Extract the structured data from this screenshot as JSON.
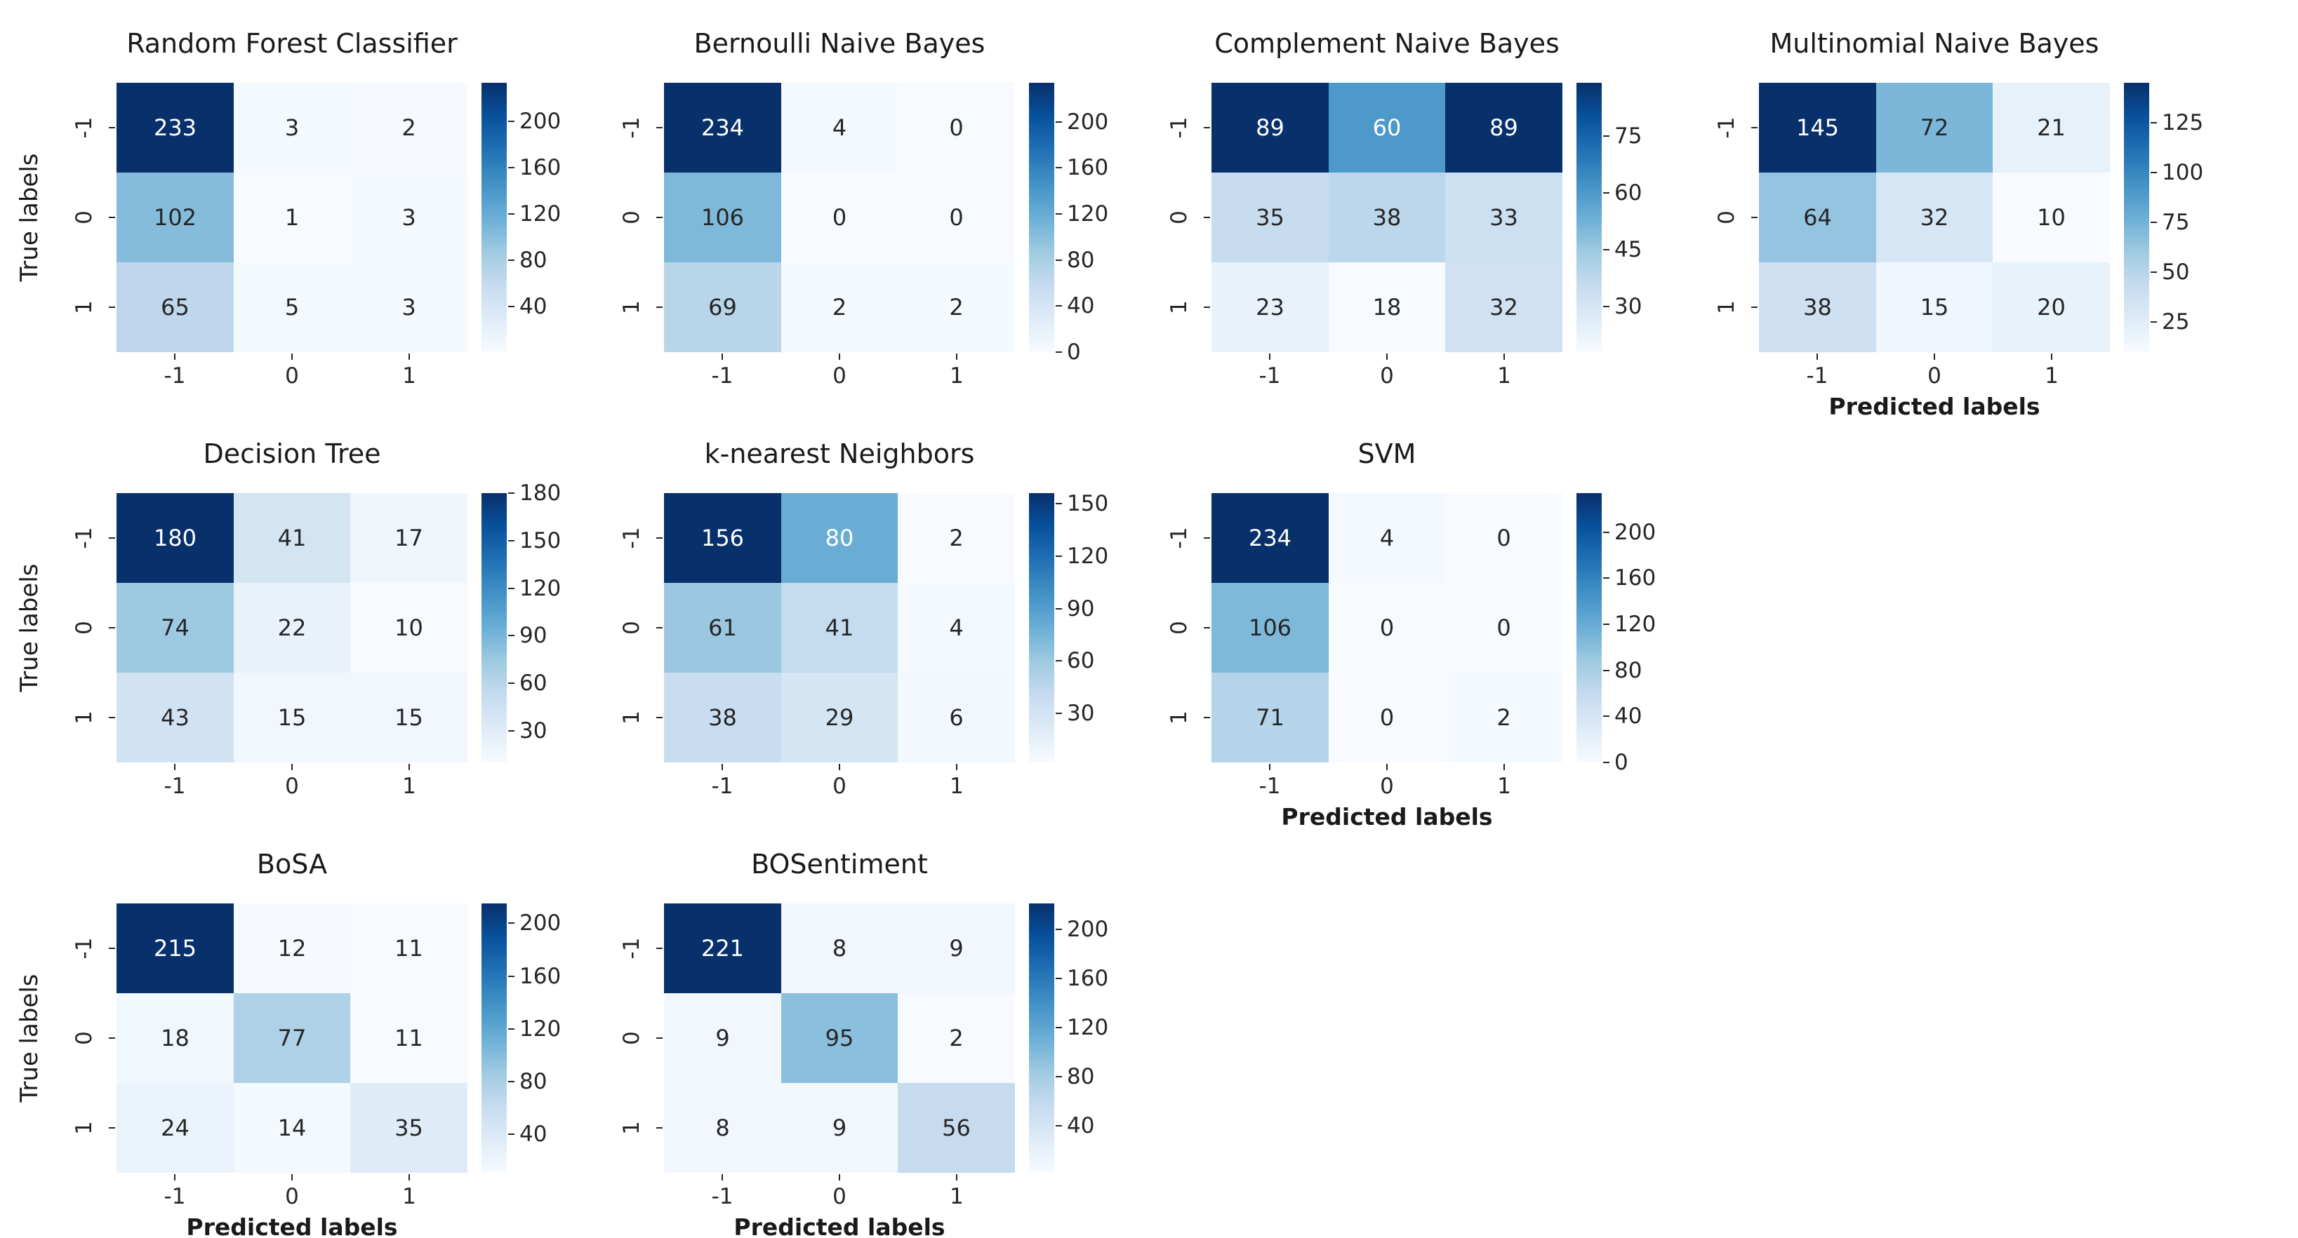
{
  "figure": {
    "background": "#ffffff",
    "y_axis_label": "True labels",
    "x_axis_label": "Predicted labels",
    "text_color": "#262626",
    "annotation_dark_color": "#262626",
    "annotation_light_color": "#ffffff",
    "colormap": {
      "name": "Blues",
      "stops": [
        "#f7fbff",
        "#deebf7",
        "#c6dbef",
        "#9ecae1",
        "#6baed6",
        "#4292c6",
        "#2171b5",
        "#08519c",
        "#08306b"
      ]
    }
  },
  "chart_data": {
    "type": "heatmap",
    "description": "Grid of 3x3 confusion matrices for nine sentiment classifiers, Blues colormap, each with its own colorbar",
    "x_categories": [
      "-1",
      "0",
      "1"
    ],
    "y_categories": [
      "-1",
      "0",
      "1"
    ],
    "charts": [
      {
        "title": "Random Forest Classifier",
        "row": 0,
        "col": 0,
        "matrix": [
          [
            233,
            3,
            2
          ],
          [
            102,
            1,
            3
          ],
          [
            65,
            5,
            3
          ]
        ],
        "vmin": 1,
        "vmax": 233,
        "colorbar_ticks": [
          200,
          160,
          120,
          80,
          40
        ],
        "show_y_axis_label": true,
        "show_x_axis_label": false
      },
      {
        "title": "Bernoulli Naive Bayes",
        "row": 0,
        "col": 1,
        "matrix": [
          [
            234,
            4,
            0
          ],
          [
            106,
            0,
            0
          ],
          [
            69,
            2,
            2
          ]
        ],
        "vmin": 0,
        "vmax": 234,
        "colorbar_ticks": [
          200,
          160,
          120,
          80,
          40,
          0
        ],
        "show_y_axis_label": false,
        "show_x_axis_label": false
      },
      {
        "title": "Complement Naive Bayes",
        "row": 0,
        "col": 2,
        "matrix": [
          [
            89,
            60,
            89
          ],
          [
            35,
            38,
            33
          ],
          [
            23,
            18,
            32
          ]
        ],
        "vmin": 18,
        "vmax": 89,
        "colorbar_ticks": [
          75,
          60,
          45,
          30
        ],
        "show_y_axis_label": false,
        "show_x_axis_label": false
      },
      {
        "title": "Multinomial Naive Bayes",
        "row": 0,
        "col": 3,
        "matrix": [
          [
            145,
            72,
            21
          ],
          [
            64,
            32,
            10
          ],
          [
            38,
            15,
            20
          ]
        ],
        "vmin": 10,
        "vmax": 145,
        "colorbar_ticks": [
          125,
          100,
          75,
          50,
          25
        ],
        "show_y_axis_label": false,
        "show_x_axis_label": true
      },
      {
        "title": "Decision Tree",
        "row": 1,
        "col": 0,
        "matrix": [
          [
            180,
            41,
            17
          ],
          [
            74,
            22,
            10
          ],
          [
            43,
            15,
            15
          ]
        ],
        "vmin": 10,
        "vmax": 180,
        "colorbar_ticks": [
          180,
          150,
          120,
          90,
          60,
          30
        ],
        "show_y_axis_label": true,
        "show_x_axis_label": false
      },
      {
        "title": "k-nearest Neighbors",
        "row": 1,
        "col": 1,
        "matrix": [
          [
            156,
            80,
            2
          ],
          [
            61,
            41,
            4
          ],
          [
            38,
            29,
            6
          ]
        ],
        "vmin": 2,
        "vmax": 156,
        "colorbar_ticks": [
          150,
          120,
          90,
          60,
          30
        ],
        "show_y_axis_label": false,
        "show_x_axis_label": false
      },
      {
        "title": "SVM",
        "row": 1,
        "col": 2,
        "matrix": [
          [
            234,
            4,
            0
          ],
          [
            106,
            0,
            0
          ],
          [
            71,
            0,
            2
          ]
        ],
        "vmin": 0,
        "vmax": 234,
        "colorbar_ticks": [
          200,
          160,
          120,
          80,
          40,
          0
        ],
        "show_y_axis_label": false,
        "show_x_axis_label": true
      },
      {
        "title": "BoSA",
        "row": 2,
        "col": 0,
        "matrix": [
          [
            215,
            12,
            11
          ],
          [
            18,
            77,
            11
          ],
          [
            24,
            14,
            35
          ]
        ],
        "vmin": 11,
        "vmax": 215,
        "colorbar_ticks": [
          200,
          160,
          120,
          80,
          40
        ],
        "show_y_axis_label": true,
        "show_x_axis_label": true
      },
      {
        "title": "BOSentiment",
        "row": 2,
        "col": 1,
        "matrix": [
          [
            221,
            8,
            9
          ],
          [
            9,
            95,
            2
          ],
          [
            8,
            9,
            56
          ]
        ],
        "vmin": 2,
        "vmax": 221,
        "colorbar_ticks": [
          200,
          160,
          120,
          80,
          40
        ],
        "show_y_axis_label": false,
        "show_x_axis_label": true
      }
    ]
  }
}
